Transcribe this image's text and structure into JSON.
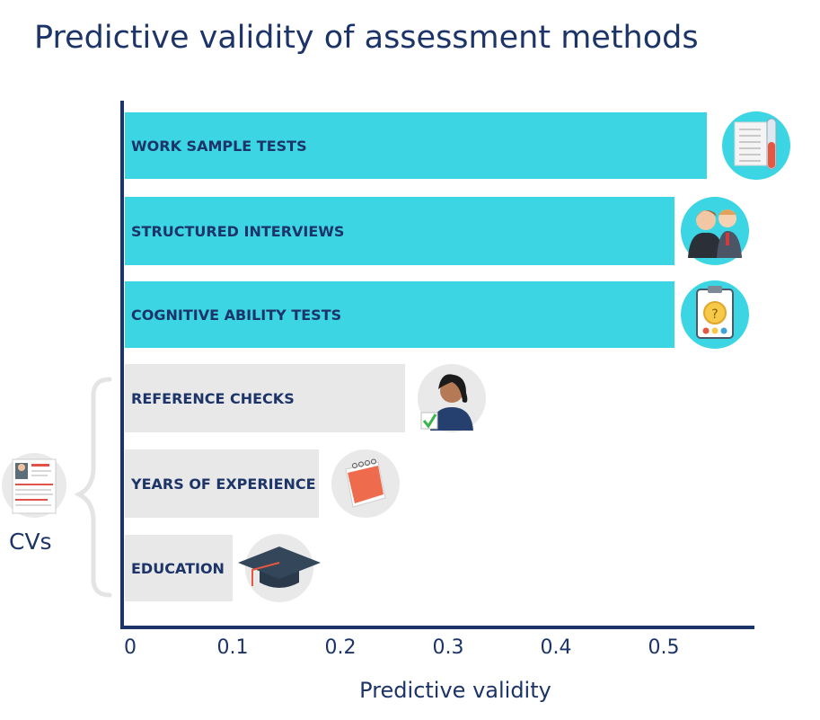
{
  "title": "Predictive validity of assessment methods",
  "cvs_label": "CVs",
  "colors": {
    "highlight": "#3bd5e3",
    "muted": "#e8e8e8",
    "text": "#1c3468",
    "axis": "#1c3468"
  },
  "chart_data": {
    "type": "bar",
    "orientation": "horizontal",
    "title": "Predictive validity of assessment methods",
    "xlabel": "Predictive validity",
    "ylabel": "",
    "xlim": [
      0,
      0.57
    ],
    "xticks": [
      "0",
      "0.1",
      "0.2",
      "0.3",
      "0.4",
      "0.5"
    ],
    "categories": [
      "WORK SAMPLE TESTS",
      "STRUCTURED INTERVIEWS",
      "COGNITIVE ABILITY TESTS",
      "REFERENCE CHECKS",
      "YEARS OF EXPERIENCE",
      "EDUCATION"
    ],
    "values": [
      0.54,
      0.51,
      0.51,
      0.26,
      0.18,
      0.1
    ],
    "highlighted": [
      true,
      true,
      true,
      false,
      false,
      false
    ],
    "icons": [
      "document-test-tube-icon",
      "interview-people-icon",
      "clipboard-stopwatch-icon",
      "woman-checkmark-icon",
      "calendar-icon",
      "graduation-cap-icon"
    ],
    "grid": false,
    "group_annotation": {
      "label": "CVs",
      "members": [
        "REFERENCE CHECKS",
        "YEARS OF EXPERIENCE",
        "EDUCATION"
      ]
    }
  }
}
